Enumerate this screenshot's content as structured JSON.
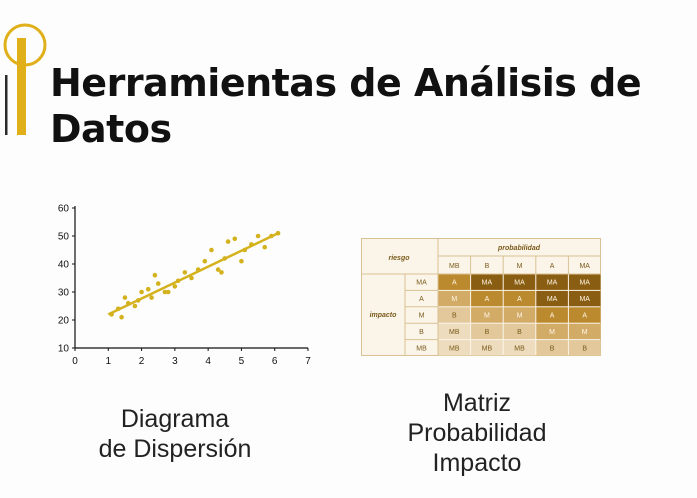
{
  "slide": {
    "title": "Herramientas de Análisis de Datos",
    "accent_color": "#e0b01a"
  },
  "scatter_caption": [
    "Diagrama",
    "de Dispersión"
  ],
  "matrix_caption": [
    "Matriz",
    "Probabilidad",
    "Impacto"
  ],
  "chart_data": {
    "type": "scatter",
    "xlim": [
      0,
      7
    ],
    "ylim": [
      10,
      60
    ],
    "x_ticks": [
      "0",
      "1",
      "2",
      "3",
      "4",
      "5",
      "6",
      "7"
    ],
    "y_ticks": [
      "10",
      "20",
      "30",
      "40",
      "50",
      "60"
    ],
    "point_color": "#d4b21e",
    "trendline": {
      "x": [
        1.0,
        6.1
      ],
      "y": [
        22,
        51
      ]
    },
    "points": [
      [
        1.1,
        22
      ],
      [
        1.3,
        24
      ],
      [
        1.4,
        21
      ],
      [
        1.5,
        28
      ],
      [
        1.6,
        26
      ],
      [
        1.8,
        25
      ],
      [
        1.9,
        27
      ],
      [
        2.0,
        30
      ],
      [
        2.2,
        31
      ],
      [
        2.3,
        28
      ],
      [
        2.4,
        36
      ],
      [
        2.5,
        33
      ],
      [
        2.7,
        30
      ],
      [
        2.8,
        30
      ],
      [
        3.0,
        32
      ],
      [
        3.1,
        34
      ],
      [
        3.3,
        37
      ],
      [
        3.5,
        35
      ],
      [
        3.7,
        38
      ],
      [
        3.9,
        41
      ],
      [
        4.1,
        45
      ],
      [
        4.3,
        38
      ],
      [
        4.4,
        37
      ],
      [
        4.5,
        42
      ],
      [
        4.6,
        48
      ],
      [
        4.8,
        49
      ],
      [
        5.0,
        41
      ],
      [
        5.1,
        45
      ],
      [
        5.3,
        47
      ],
      [
        5.5,
        50
      ],
      [
        5.7,
        46
      ],
      [
        5.9,
        50
      ],
      [
        6.1,
        51
      ]
    ]
  },
  "matrix": {
    "header_risk": "riesgo",
    "header_probability": "probabilidad",
    "impact_label": "impacto",
    "columns": [
      "MB",
      "B",
      "M",
      "A",
      "MA"
    ],
    "rows": [
      {
        "label": "MA",
        "cells": [
          "A",
          "MA",
          "MA",
          "MA",
          "MA"
        ]
      },
      {
        "label": "A",
        "cells": [
          "M",
          "A",
          "A",
          "MA",
          "MA"
        ]
      },
      {
        "label": "M",
        "cells": [
          "B",
          "M",
          "M",
          "A",
          "A"
        ]
      },
      {
        "label": "B",
        "cells": [
          "MB",
          "B",
          "B",
          "M",
          "M"
        ]
      },
      {
        "label": "MB",
        "cells": [
          "MB",
          "MB",
          "MB",
          "B",
          "B"
        ]
      }
    ],
    "level_colors": {
      "MB": "#eddcbd",
      "B": "#e2c89a",
      "M": "#d2ab67",
      "A": "#bb8a2e",
      "MA": "#8a5e12"
    },
    "text_light": "#fff7e6",
    "text_dark": "#7a5a1a"
  }
}
